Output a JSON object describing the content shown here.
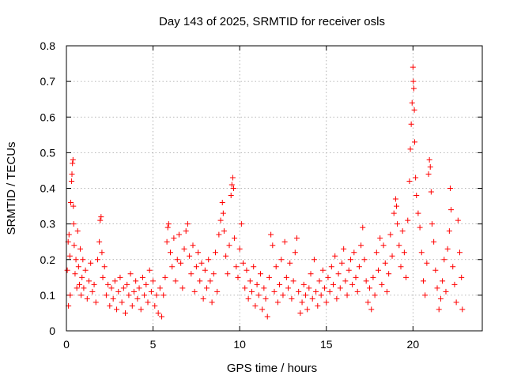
{
  "chart_data": {
    "type": "scatter",
    "title": "Day 143 of 2025, SRMTID for receiver osls",
    "xlabel": "GPS time / hours",
    "ylabel": "SRMTID / TECUs",
    "xlim": [
      0,
      24
    ],
    "ylim": [
      0,
      0.8
    ],
    "xticks": [
      0,
      5,
      10,
      15,
      20
    ],
    "xtick_labels": [
      "0",
      "5",
      "10",
      "15",
      "20"
    ],
    "yticks": [
      0,
      0.1,
      0.2,
      0.3,
      0.4,
      0.5,
      0.6,
      0.7,
      0.8
    ],
    "ytick_labels": [
      "0",
      "0.1",
      "0.2",
      "0.3",
      "0.4",
      "0.5",
      "0.6",
      "0.7",
      "0.8"
    ],
    "grid": true,
    "marker": "+",
    "colors": {
      "series": "#ff0000",
      "grid": "#a0a0a0",
      "axis": "#000000"
    },
    "series": [
      {
        "name": "SRMTID",
        "points": [
          [
            0.05,
            0.17
          ],
          [
            0.1,
            0.25
          ],
          [
            0.12,
            0.07
          ],
          [
            0.15,
            0.27
          ],
          [
            0.2,
            0.21
          ],
          [
            0.22,
            0.1
          ],
          [
            0.25,
            0.36
          ],
          [
            0.3,
            0.42
          ],
          [
            0.32,
            0.44
          ],
          [
            0.35,
            0.47
          ],
          [
            0.38,
            0.48
          ],
          [
            0.4,
            0.35
          ],
          [
            0.42,
            0.3
          ],
          [
            0.45,
            0.24
          ],
          [
            0.5,
            0.16
          ],
          [
            0.55,
            0.2
          ],
          [
            0.6,
            0.12
          ],
          [
            0.65,
            0.28
          ],
          [
            0.7,
            0.18
          ],
          [
            0.75,
            0.13
          ],
          [
            0.8,
            0.23
          ],
          [
            0.85,
            0.1
          ],
          [
            0.9,
            0.15
          ],
          [
            0.95,
            0.2
          ],
          [
            1.0,
            0.12
          ],
          [
            1.1,
            0.17
          ],
          [
            1.2,
            0.09
          ],
          [
            1.3,
            0.14
          ],
          [
            1.4,
            0.19
          ],
          [
            1.5,
            0.11
          ],
          [
            1.6,
            0.13
          ],
          [
            1.7,
            0.08
          ],
          [
            1.8,
            0.2
          ],
          [
            1.9,
            0.25
          ],
          [
            1.95,
            0.31
          ],
          [
            2.0,
            0.32
          ],
          [
            2.05,
            0.22
          ],
          [
            2.1,
            0.15
          ],
          [
            2.2,
            0.18
          ],
          [
            2.3,
            0.1
          ],
          [
            2.4,
            0.13
          ],
          [
            2.5,
            0.07
          ],
          [
            2.6,
            0.12
          ],
          [
            2.7,
            0.09
          ],
          [
            2.8,
            0.14
          ],
          [
            2.9,
            0.06
          ],
          [
            3.0,
            0.11
          ],
          [
            3.1,
            0.15
          ],
          [
            3.2,
            0.08
          ],
          [
            3.3,
            0.12
          ],
          [
            3.4,
            0.05
          ],
          [
            3.5,
            0.13
          ],
          [
            3.6,
            0.1
          ],
          [
            3.7,
            0.16
          ],
          [
            3.8,
            0.07
          ],
          [
            3.9,
            0.11
          ],
          [
            4.0,
            0.14
          ],
          [
            4.1,
            0.09
          ],
          [
            4.2,
            0.12
          ],
          [
            4.3,
            0.06
          ],
          [
            4.4,
            0.15
          ],
          [
            4.5,
            0.1
          ],
          [
            4.6,
            0.13
          ],
          [
            4.7,
            0.08
          ],
          [
            4.8,
            0.17
          ],
          [
            4.9,
            0.11
          ],
          [
            5.0,
            0.14
          ],
          [
            5.1,
            0.07
          ],
          [
            5.2,
            0.1
          ],
          [
            5.3,
            0.05
          ],
          [
            5.4,
            0.12
          ],
          [
            5.5,
            0.04
          ],
          [
            5.6,
            0.1
          ],
          [
            5.7,
            0.15
          ],
          [
            5.8,
            0.25
          ],
          [
            5.85,
            0.29
          ],
          [
            5.9,
            0.3
          ],
          [
            6.0,
            0.22
          ],
          [
            6.1,
            0.18
          ],
          [
            6.2,
            0.26
          ],
          [
            6.3,
            0.14
          ],
          [
            6.4,
            0.2
          ],
          [
            6.5,
            0.27
          ],
          [
            6.6,
            0.19
          ],
          [
            6.7,
            0.12
          ],
          [
            6.8,
            0.23
          ],
          [
            6.9,
            0.28
          ],
          [
            7.0,
            0.3
          ],
          [
            7.1,
            0.21
          ],
          [
            7.2,
            0.16
          ],
          [
            7.3,
            0.24
          ],
          [
            7.4,
            0.11
          ],
          [
            7.5,
            0.18
          ],
          [
            7.6,
            0.22
          ],
          [
            7.7,
            0.14
          ],
          [
            7.8,
            0.19
          ],
          [
            7.9,
            0.09
          ],
          [
            8.0,
            0.17
          ],
          [
            8.1,
            0.12
          ],
          [
            8.2,
            0.2
          ],
          [
            8.3,
            0.14
          ],
          [
            8.4,
            0.08
          ],
          [
            8.5,
            0.16
          ],
          [
            8.6,
            0.22
          ],
          [
            8.7,
            0.11
          ],
          [
            8.8,
            0.27
          ],
          [
            8.9,
            0.31
          ],
          [
            9.0,
            0.36
          ],
          [
            9.05,
            0.33
          ],
          [
            9.1,
            0.28
          ],
          [
            9.2,
            0.21
          ],
          [
            9.3,
            0.16
          ],
          [
            9.4,
            0.24
          ],
          [
            9.5,
            0.38
          ],
          [
            9.55,
            0.41
          ],
          [
            9.6,
            0.43
          ],
          [
            9.65,
            0.4
          ],
          [
            9.7,
            0.26
          ],
          [
            9.8,
            0.18
          ],
          [
            9.9,
            0.15
          ],
          [
            10.0,
            0.23
          ],
          [
            10.1,
            0.3
          ],
          [
            10.2,
            0.19
          ],
          [
            10.3,
            0.12
          ],
          [
            10.4,
            0.17
          ],
          [
            10.5,
            0.09
          ],
          [
            10.6,
            0.14
          ],
          [
            10.7,
            0.11
          ],
          [
            10.8,
            0.18
          ],
          [
            10.9,
            0.07
          ],
          [
            11.0,
            0.13
          ],
          [
            11.1,
            0.1
          ],
          [
            11.2,
            0.16
          ],
          [
            11.3,
            0.06
          ],
          [
            11.4,
            0.12
          ],
          [
            11.5,
            0.09
          ],
          [
            11.6,
            0.04
          ],
          [
            11.7,
            0.15
          ],
          [
            11.8,
            0.27
          ],
          [
            11.9,
            0.24
          ],
          [
            12.0,
            0.11
          ],
          [
            12.1,
            0.18
          ],
          [
            12.2,
            0.08
          ],
          [
            12.3,
            0.13
          ],
          [
            12.4,
            0.2
          ],
          [
            12.5,
            0.1
          ],
          [
            12.6,
            0.25
          ],
          [
            12.7,
            0.15
          ],
          [
            12.8,
            0.12
          ],
          [
            12.9,
            0.19
          ],
          [
            13.0,
            0.09
          ],
          [
            13.1,
            0.14
          ],
          [
            13.2,
            0.22
          ],
          [
            13.3,
            0.26
          ],
          [
            13.4,
            0.11
          ],
          [
            13.5,
            0.05
          ],
          [
            13.6,
            0.08
          ],
          [
            13.7,
            0.13
          ],
          [
            13.8,
            0.1
          ],
          [
            13.9,
            0.06
          ],
          [
            14.0,
            0.12
          ],
          [
            14.1,
            0.16
          ],
          [
            14.2,
            0.09
          ],
          [
            14.3,
            0.2
          ],
          [
            14.4,
            0.11
          ],
          [
            14.5,
            0.07
          ],
          [
            14.6,
            0.14
          ],
          [
            14.7,
            0.1
          ],
          [
            14.8,
            0.17
          ],
          [
            14.9,
            0.12
          ],
          [
            15.0,
            0.08
          ],
          [
            15.1,
            0.15
          ],
          [
            15.2,
            0.11
          ],
          [
            15.3,
            0.18
          ],
          [
            15.4,
            0.13
          ],
          [
            15.5,
            0.21
          ],
          [
            15.6,
            0.09
          ],
          [
            15.7,
            0.16
          ],
          [
            15.8,
            0.12
          ],
          [
            15.9,
            0.19
          ],
          [
            16.0,
            0.23
          ],
          [
            16.1,
            0.14
          ],
          [
            16.2,
            0.1
          ],
          [
            16.3,
            0.17
          ],
          [
            16.4,
            0.2
          ],
          [
            16.5,
            0.13
          ],
          [
            16.6,
            0.22
          ],
          [
            16.7,
            0.15
          ],
          [
            16.8,
            0.11
          ],
          [
            16.9,
            0.18
          ],
          [
            17.0,
            0.24
          ],
          [
            17.1,
            0.29
          ],
          [
            17.2,
            0.2
          ],
          [
            17.3,
            0.14
          ],
          [
            17.4,
            0.08
          ],
          [
            17.5,
            0.12
          ],
          [
            17.6,
            0.06
          ],
          [
            17.7,
            0.15
          ],
          [
            17.8,
            0.1
          ],
          [
            17.9,
            0.22
          ],
          [
            18.0,
            0.17
          ],
          [
            18.1,
            0.26
          ],
          [
            18.2,
            0.13
          ],
          [
            18.3,
            0.24
          ],
          [
            18.4,
            0.19
          ],
          [
            18.5,
            0.11
          ],
          [
            18.6,
            0.16
          ],
          [
            18.7,
            0.27
          ],
          [
            18.8,
            0.21
          ],
          [
            18.9,
            0.33
          ],
          [
            19.0,
            0.37
          ],
          [
            19.05,
            0.35
          ],
          [
            19.1,
            0.3
          ],
          [
            19.2,
            0.24
          ],
          [
            19.3,
            0.18
          ],
          [
            19.4,
            0.28
          ],
          [
            19.5,
            0.22
          ],
          [
            19.6,
            0.15
          ],
          [
            19.7,
            0.31
          ],
          [
            19.8,
            0.42
          ],
          [
            19.85,
            0.51
          ],
          [
            19.9,
            0.58
          ],
          [
            19.95,
            0.64
          ],
          [
            20.0,
            0.74
          ],
          [
            20.02,
            0.7
          ],
          [
            20.05,
            0.68
          ],
          [
            20.08,
            0.62
          ],
          [
            20.1,
            0.53
          ],
          [
            20.15,
            0.43
          ],
          [
            20.2,
            0.38
          ],
          [
            20.3,
            0.33
          ],
          [
            20.4,
            0.29
          ],
          [
            20.5,
            0.22
          ],
          [
            20.6,
            0.14
          ],
          [
            20.7,
            0.1
          ],
          [
            20.8,
            0.19
          ],
          [
            20.9,
            0.44
          ],
          [
            20.95,
            0.48
          ],
          [
            21.0,
            0.46
          ],
          [
            21.05,
            0.39
          ],
          [
            21.1,
            0.3
          ],
          [
            21.2,
            0.25
          ],
          [
            21.3,
            0.17
          ],
          [
            21.4,
            0.12
          ],
          [
            21.5,
            0.06
          ],
          [
            21.6,
            0.09
          ],
          [
            21.7,
            0.14
          ],
          [
            21.8,
            0.2
          ],
          [
            21.9,
            0.11
          ],
          [
            22.0,
            0.23
          ],
          [
            22.1,
            0.28
          ],
          [
            22.15,
            0.4
          ],
          [
            22.2,
            0.34
          ],
          [
            22.3,
            0.18
          ],
          [
            22.4,
            0.13
          ],
          [
            22.5,
            0.08
          ],
          [
            22.6,
            0.31
          ],
          [
            22.7,
            0.22
          ],
          [
            22.8,
            0.15
          ],
          [
            22.85,
            0.06
          ]
        ]
      }
    ]
  }
}
